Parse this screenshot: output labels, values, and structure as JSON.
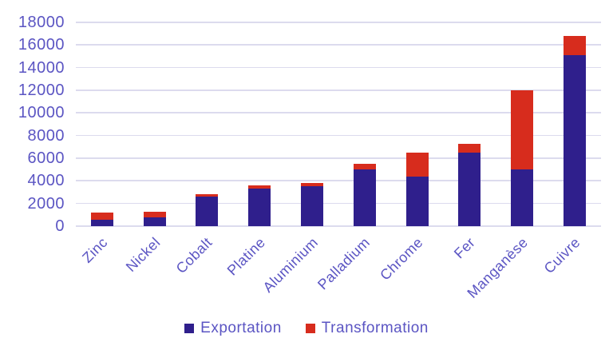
{
  "chart_data": {
    "type": "bar",
    "stacked": true,
    "title": "",
    "xlabel": "",
    "ylabel": "",
    "categories": [
      "Zinc",
      "Nickel",
      "Cobalt",
      "Platine",
      "Aluminium",
      "Palladium",
      "Chrome",
      "Fer",
      "Manganèse",
      "Cuivre"
    ],
    "series": [
      {
        "name": "Exportation",
        "color": "#2F1F8C",
        "values": [
          600,
          800,
          2600,
          3300,
          3500,
          5000,
          4400,
          6500,
          5000,
          15100
        ]
      },
      {
        "name": "Transformation",
        "color": "#D72C1D",
        "values": [
          600,
          500,
          200,
          300,
          300,
          500,
          2100,
          800,
          7000,
          1700
        ]
      }
    ],
    "totals": [
      1200,
      1300,
      2800,
      3600,
      3800,
      5500,
      6500,
      7300,
      12000,
      16800
    ],
    "ylim": [
      0,
      18000
    ],
    "yticks": [
      0,
      2000,
      4000,
      6000,
      8000,
      10000,
      12000,
      14000,
      16000,
      18000
    ],
    "grid": true,
    "legend_position": "bottom",
    "colors": {
      "axis_text": "#5B55C3",
      "gridline": "#DCDBEE",
      "background": "#FFFFFF"
    }
  }
}
